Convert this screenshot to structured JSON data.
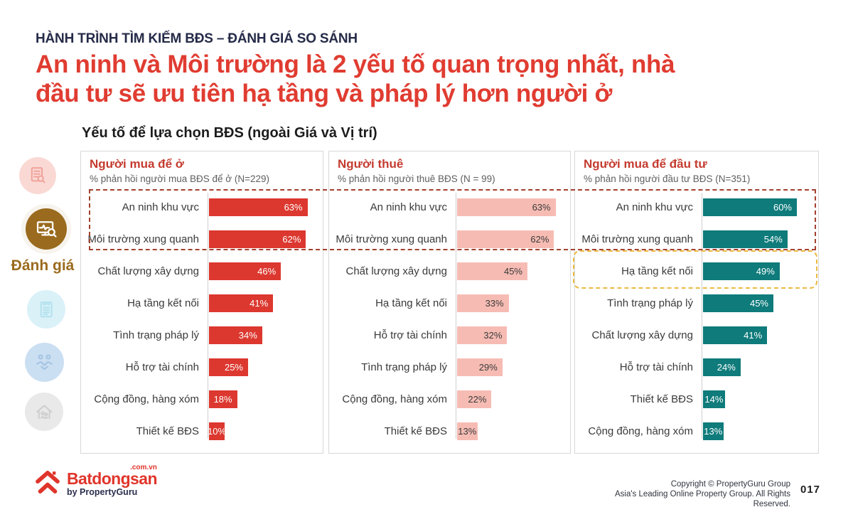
{
  "slide": {
    "kicker": "HÀNH TRÌNH TÌM KIẾM BĐS – ĐÁNH GIÁ SO SÁNH",
    "title_lines": [
      "An ninh và Môi trường là 2 yếu tố quan trọng nhất, nhà",
      "đầu tư sẽ ưu tiên hạ tầng và pháp lý hơn người ở"
    ],
    "section_subtitle": "Yếu tố để lựa chọn BĐS (ngoài Giá và Vị trí)",
    "page_number": "017"
  },
  "sidebar": {
    "active_label": "Đánh giá",
    "icons": [
      {
        "name": "document-search-icon",
        "state": "inactive"
      },
      {
        "name": "monitor-analytics-search-icon",
        "state": "active"
      },
      {
        "name": "contract-icon",
        "state": "inactive"
      },
      {
        "name": "handshake-icon",
        "state": "inactive"
      },
      {
        "name": "house-family-icon",
        "state": "inactive"
      }
    ]
  },
  "chart_data": [
    {
      "type": "bar",
      "orientation": "horizontal",
      "title": "Người mua để ở",
      "subtitle": "% phản hồi người mua BĐS để ở (N=229)",
      "categories": [
        "An ninh khu vực",
        "Môi trường xung quanh",
        "Chất lượng xây dựng",
        "Hạ tầng kết nối",
        "Tình trạng pháp lý",
        "Hỗ trợ tài chính",
        "Cộng đồng, hàng xóm",
        "Thiết kế BĐS"
      ],
      "values": [
        63,
        62,
        46,
        41,
        34,
        25,
        18,
        10
      ],
      "unit": "%",
      "xlim": [
        0,
        100
      ],
      "bar_color": "#dc382f",
      "value_label_color": "#ffffff"
    },
    {
      "type": "bar",
      "orientation": "horizontal",
      "title": "Người thuê",
      "subtitle": "% phản hồi người thuê BĐS (N = 99)",
      "categories": [
        "An ninh khu vực",
        "Môi trường xung quanh",
        "Chất lượng xây dựng",
        "Hạ tầng kết nối",
        "Hỗ trợ tài chính",
        "Tình trạng pháp lý",
        "Cộng đồng, hàng xóm",
        "Thiết kế BĐS"
      ],
      "values": [
        63,
        62,
        45,
        33,
        32,
        29,
        22,
        13
      ],
      "unit": "%",
      "xlim": [
        0,
        100
      ],
      "bar_color": "#f6bcb4",
      "value_label_color": "#3a3a3a"
    },
    {
      "type": "bar",
      "orientation": "horizontal",
      "title": "Người mua để đầu tư",
      "subtitle": "% phản hồi người đầu tư BĐS (N=351)",
      "categories": [
        "An ninh khu vực",
        "Môi trường xung quanh",
        "Hạ tầng kết nối",
        "Tình trạng pháp lý",
        "Chất lượng xây dựng",
        "Hỗ trợ tài chính",
        "Thiết kế BĐS",
        "Cộng đồng, hàng xóm"
      ],
      "values": [
        60,
        54,
        49,
        45,
        41,
        24,
        14,
        13
      ],
      "unit": "%",
      "xlim": [
        0,
        100
      ],
      "bar_color": "#0f7b7b",
      "value_label_color": "#ffffff"
    }
  ],
  "annotations": [
    {
      "type": "dashed-box",
      "color": "#a3402f",
      "covers": "Top 2 rows (An ninh khu vực, Môi trường xung quanh) across all three charts"
    },
    {
      "type": "dashed-box",
      "color": "#ebba44",
      "covers": "Hạ tầng kết nối row in investor chart"
    }
  ],
  "footer": {
    "logo_text": "Batdongsan",
    "logo_suffix": ".com.vn",
    "logo_byline": "by PropertyGuru",
    "copyright_line1": "Copyright © PropertyGuru Group",
    "copyright_line2": "Asia's Leading Online Property Group. All Rights Reserved."
  },
  "colors": {
    "accent_red": "#e03c31",
    "bar_red": "#dc382f",
    "bar_pink": "#f6bcb4",
    "bar_teal": "#0f7b7b",
    "navy": "#252b48",
    "gold": "#9a6b1e",
    "panel_header_red": "#c43b2f",
    "highlight_red_dashed": "#a3402f",
    "highlight_yellow_dashed": "#ebba44"
  }
}
